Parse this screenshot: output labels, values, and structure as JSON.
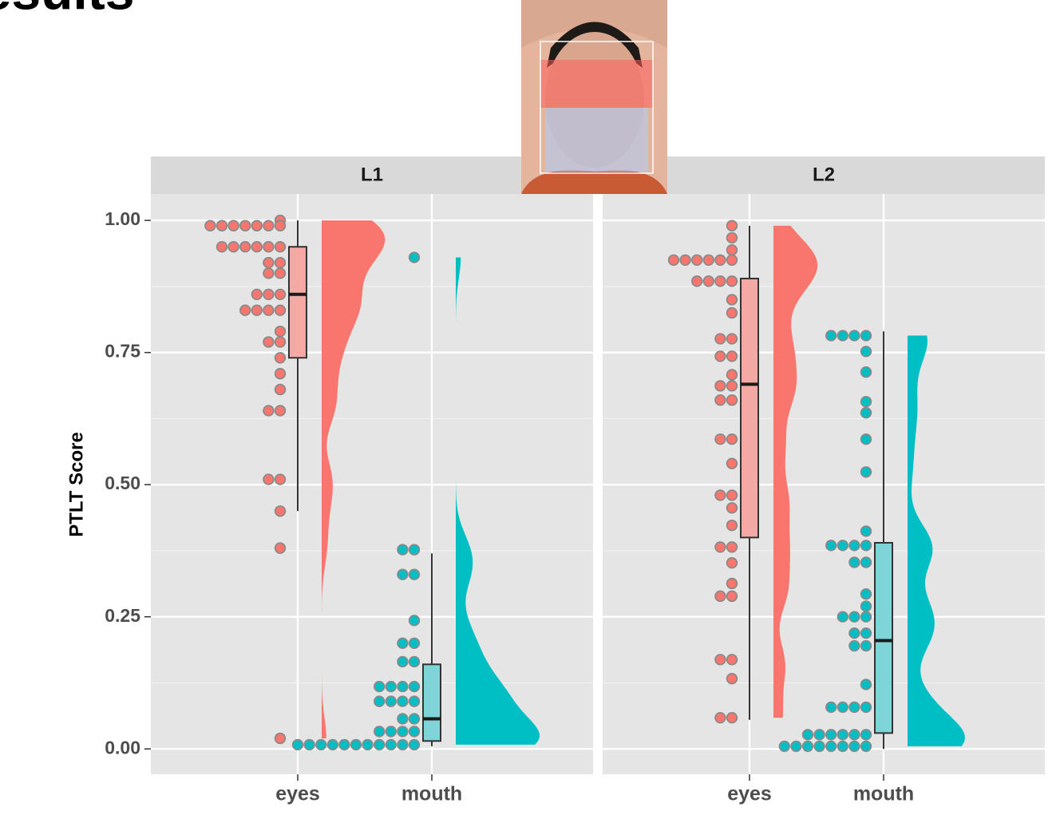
{
  "title": "Results",
  "chart_data": {
    "type": "raincloud",
    "ylabel": "PTLT Score",
    "ylim": [
      -0.048,
      1.05
    ],
    "yticks": [
      {
        "value": 0,
        "label": "0.00"
      },
      {
        "value": 0.25,
        "label": "0.25"
      },
      {
        "value": 0.5,
        "label": "0.50"
      },
      {
        "value": 0.75,
        "label": "0.75"
      },
      {
        "value": 1,
        "label": "1.00"
      }
    ],
    "grid": true,
    "facets": [
      {
        "name": "L1",
        "groups": [
          {
            "name": "eyes",
            "color": "#F8766D",
            "values": [
              1.0,
              0.99,
              0.95,
              0.92,
              0.9,
              0.86,
              0.83,
              0.79,
              0.77,
              0.74,
              0.71,
              0.68,
              0.64,
              0.51,
              0.45,
              0.38,
              0.02
            ],
            "counts": [
              1,
              7,
              6,
              2,
              2,
              3,
              4,
              1,
              2,
              1,
              1,
              1,
              2,
              2,
              1,
              1,
              1
            ],
            "box": {
              "min": 0.45,
              "q1": 0.74,
              "median": 0.86,
              "q3": 0.95,
              "max": 1.0
            }
          },
          {
            "name": "mouth",
            "color": "#00BFC4",
            "values": [
              0.93,
              0.377,
              0.33,
              0.243,
              0.2,
              0.165,
              0.118,
              0.09,
              0.057,
              0.033,
              0.008
            ],
            "counts": [
              1,
              2,
              2,
              1,
              2,
              2,
              4,
              4,
              2,
              4,
              11
            ],
            "box": {
              "min": 0.005,
              "q1": 0.015,
              "median": 0.057,
              "q3": 0.16,
              "max": 0.37
            }
          }
        ]
      },
      {
        "name": "L2",
        "groups": [
          {
            "name": "eyes",
            "color": "#F8766D",
            "values": [
              0.99,
              0.967,
              0.944,
              0.925,
              0.885,
              0.85,
              0.825,
              0.776,
              0.743,
              0.708,
              0.687,
              0.66,
              0.586,
              0.54,
              0.48,
              0.456,
              0.423,
              0.382,
              0.352,
              0.313,
              0.289,
              0.169,
              0.133,
              0.059
            ],
            "counts": [
              1,
              1,
              1,
              6,
              4,
              1,
              1,
              2,
              2,
              1,
              2,
              2,
              2,
              1,
              2,
              1,
              1,
              2,
              1,
              1,
              2,
              2,
              1,
              2
            ],
            "box": {
              "min": 0.055,
              "q1": 0.4,
              "median": 0.69,
              "q3": 0.89,
              "max": 0.99
            }
          },
          {
            "name": "mouth",
            "color": "#00BFC4",
            "values": [
              0.782,
              0.752,
              0.713,
              0.657,
              0.636,
              0.586,
              0.524,
              0.412,
              0.385,
              0.353,
              0.293,
              0.27,
              0.25,
              0.219,
              0.195,
              0.122,
              0.079,
              0.027,
              0.005
            ],
            "counts": [
              4,
              1,
              1,
              1,
              1,
              1,
              1,
              1,
              4,
              2,
              1,
              1,
              3,
              2,
              2,
              1,
              4,
              6,
              8
            ],
            "box": {
              "min": 0.0,
              "q1": 0.03,
              "median": 0.205,
              "q3": 0.39,
              "max": 0.79
            }
          }
        ]
      }
    ]
  }
}
